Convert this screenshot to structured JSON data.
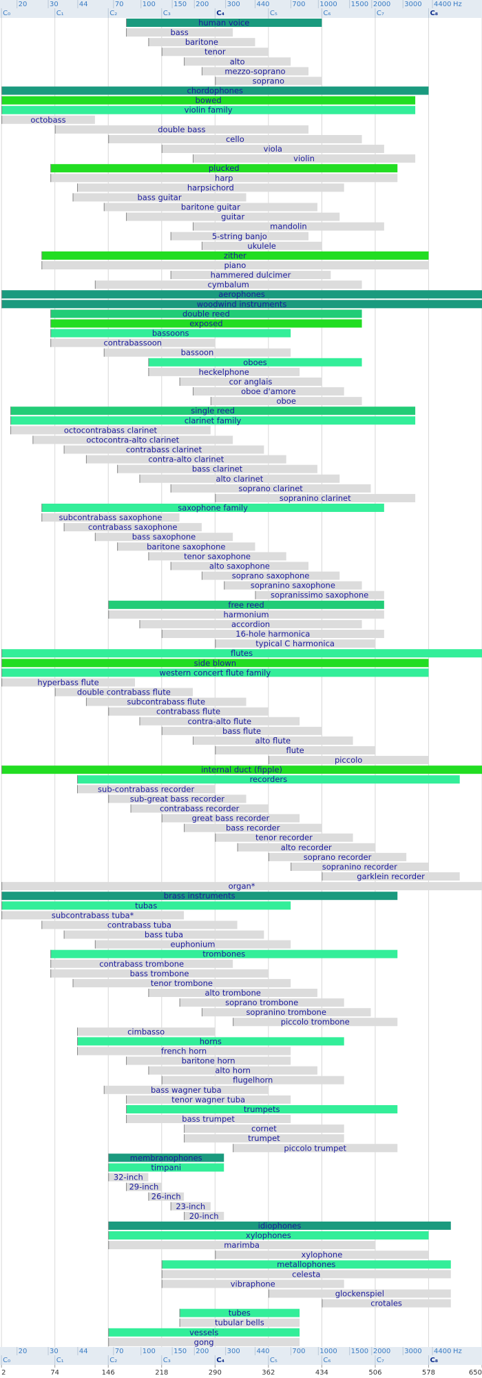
{
  "chart_data": {
    "type": "range_bar",
    "xlim": [
      0,
      650
    ],
    "xticks": [
      2,
      74,
      146,
      218,
      290,
      362,
      434,
      506,
      578,
      650
    ],
    "x2lim": [
      16.04,
      8372.02
    ],
    "x2scale": "log",
    "x2ticks": [
      20,
      30,
      44,
      70,
      100,
      150,
      200,
      300,
      440,
      700,
      1000,
      1500,
      2000,
      3000,
      4400
    ],
    "x2_unit": "Hz",
    "note_ticks": [
      {
        "value": 2,
        "label": "C₀"
      },
      {
        "value": 74,
        "label": "C₁"
      },
      {
        "value": 146,
        "label": "C₂"
      },
      {
        "value": 218,
        "label": "C₃"
      },
      {
        "value": 290,
        "label": "C₄"
      },
      {
        "value": 362,
        "label": "C₅"
      },
      {
        "value": 434,
        "label": "C₆"
      },
      {
        "value": 506,
        "label": "C₇"
      },
      {
        "value": 578,
        "label": "C₈"
      }
    ],
    "grid": true,
    "label_color": "#1a1a9c",
    "categories": [
      "human voice",
      "bass",
      "baritone",
      "tenor",
      "alto",
      "mezzo-soprano",
      "soprano",
      "chordophones",
      "bowed",
      "violin family",
      "octobass",
      "double bass",
      "cello",
      "viola",
      "violin",
      "plucked",
      "harp",
      "harpsichord",
      "bass guitar",
      "baritone guitar",
      "guitar",
      "mandolin",
      "5-string banjo",
      "ukulele",
      "zither",
      "piano",
      "hammered dulcimer",
      "cymbalum",
      "aerophones",
      "woodwind instruments",
      "double reed",
      "exposed",
      "bassoons",
      "contrabassoon",
      "bassoon",
      "oboes",
      "heckelphone",
      "cor anglais",
      "oboe d'amore",
      "oboe",
      "single reed",
      "clarinet family",
      "octocontrabass clarinet",
      "octocontra-alto clarinet",
      "contrabass clarinet",
      "contra-alto clarinet",
      "bass clarinet",
      "alto clarinet",
      "soprano clarinet",
      "sopranino clarinet",
      "saxophone family",
      "subcontrabass saxophone",
      "contrabass saxophone",
      "bass saxophone",
      "baritone saxophone",
      "tenor saxophone",
      "alto saxophone",
      "soprano saxophone",
      "sopranino saxophone",
      "sopranissimo saxophone",
      "free reed",
      "harmonium",
      "accordion",
      "16-hole harmonica",
      "typical C harmonica",
      "flutes",
      "side blown",
      "western concert flute family",
      "hyperbass flute",
      "double contrabass flute",
      "subcontrabass flute",
      "contrabass flute",
      "contra-alto flute",
      "bass flute",
      "alto flute",
      "flute",
      "piccolo",
      "internal duct (fipple)",
      "recorders",
      "sub-contrabass recorder",
      "sub-great bass recorder",
      "contrabass recorder",
      "great bass recorder",
      "bass recorder",
      "tenor recorder",
      "alto recorder",
      "soprano recorder",
      "sopranino recorder",
      "garklein recorder",
      "organ*",
      "brass instruments",
      "tubas",
      "subcontrabass tuba*",
      "contrabass tuba",
      "bass tuba",
      "euphonium",
      "trombones",
      "contrabass trombone",
      "bass trombone",
      "tenor trombone",
      "alto trombone",
      "soprano trombone",
      "sopranino trombone",
      "piccolo trombone",
      "cimbasso",
      "horns",
      "french horn",
      "baritone horn",
      "alto horn",
      "flugelhorn",
      "bass wagner tuba",
      "tenor wagner tuba",
      "trumpets",
      "bass trumpet",
      "cornet",
      "trumpet",
      "piccolo trumpet",
      "membranophones",
      "timpani",
      "32-inch",
      "29-inch",
      "26-inch",
      "23-inch",
      "20-inch",
      "idiophones",
      "xylophones",
      "marimba",
      "xylophone",
      "metallophones",
      "celesta",
      "vibraphone",
      "glockenspiel",
      "crotales",
      "tubes",
      "tubular bells",
      "vessels",
      "gong"
    ],
    "low": [
      170,
      170,
      200,
      218,
      248,
      272,
      290,
      2,
      2,
      2,
      2,
      74,
      146,
      218,
      260,
      68,
      68,
      104,
      98,
      140,
      170,
      260,
      230,
      272,
      56,
      56,
      230,
      128,
      2,
      2,
      68,
      68,
      68,
      68,
      140,
      200,
      200,
      242,
      260,
      284,
      14,
      14,
      14,
      44,
      86,
      116,
      158,
      188,
      230,
      290,
      56,
      56,
      86,
      128,
      158,
      200,
      230,
      272,
      302,
      344,
      146,
      146,
      188,
      218,
      290,
      2,
      2,
      2,
      2,
      74,
      116,
      146,
      188,
      218,
      260,
      290,
      362,
      2,
      104,
      104,
      146,
      176,
      218,
      248,
      290,
      320,
      362,
      392,
      434,
      2,
      2,
      2,
      2,
      56,
      86,
      128,
      68,
      68,
      68,
      98,
      200,
      242,
      272,
      314,
      104,
      104,
      104,
      170,
      200,
      218,
      140,
      170,
      170,
      170,
      248,
      248,
      314,
      146,
      146,
      146,
      170,
      200,
      230,
      248,
      146,
      146,
      146,
      290,
      218,
      218,
      218,
      362,
      434,
      242,
      242,
      146,
      146
    ],
    "high": [
      434,
      314,
      344,
      362,
      392,
      416,
      434,
      578,
      560,
      560,
      128,
      416,
      488,
      518,
      560,
      536,
      536,
      464,
      332,
      428,
      458,
      518,
      416,
      434,
      578,
      578,
      446,
      488,
      650,
      650,
      488,
      488,
      392,
      290,
      392,
      488,
      404,
      434,
      464,
      488,
      560,
      560,
      284,
      314,
      356,
      386,
      428,
      458,
      500,
      560,
      518,
      242,
      272,
      314,
      344,
      386,
      416,
      458,
      488,
      518,
      518,
      518,
      488,
      518,
      506,
      650,
      578,
      578,
      182,
      260,
      332,
      362,
      404,
      434,
      476,
      506,
      578,
      650,
      620,
      290,
      332,
      362,
      404,
      434,
      476,
      506,
      548,
      578,
      620,
      650,
      536,
      392,
      248,
      320,
      356,
      392,
      536,
      314,
      362,
      392,
      428,
      464,
      500,
      536,
      290,
      464,
      392,
      392,
      428,
      464,
      362,
      392,
      536,
      392,
      464,
      464,
      536,
      302,
      302,
      200,
      218,
      248,
      284,
      302,
      608,
      578,
      506,
      578,
      608,
      608,
      464,
      608,
      608,
      404,
      404,
      404,
      404
    ],
    "colors": [
      "#1a9a7e",
      "#dcdcdc",
      "#dcdcdc",
      "#dcdcdc",
      "#dcdcdc",
      "#dcdcdc",
      "#dcdcdc",
      "#1a9a7e",
      "#22dd22",
      "#33ee99",
      "#dcdcdc",
      "#dcdcdc",
      "#dcdcdc",
      "#dcdcdc",
      "#dcdcdc",
      "#22dd22",
      "#dcdcdc",
      "#dcdcdc",
      "#dcdcdc",
      "#dcdcdc",
      "#dcdcdc",
      "#dcdcdc",
      "#dcdcdc",
      "#dcdcdc",
      "#22dd22",
      "#dcdcdc",
      "#dcdcdc",
      "#dcdcdc",
      "#1a9a7e",
      "#1a9a7e",
      "#22cc77",
      "#22dd22",
      "#33ee99",
      "#dcdcdc",
      "#dcdcdc",
      "#33ee99",
      "#dcdcdc",
      "#dcdcdc",
      "#dcdcdc",
      "#dcdcdc",
      "#22cc77",
      "#33ee99",
      "#dcdcdc",
      "#dcdcdc",
      "#dcdcdc",
      "#dcdcdc",
      "#dcdcdc",
      "#dcdcdc",
      "#dcdcdc",
      "#dcdcdc",
      "#33ee99",
      "#dcdcdc",
      "#dcdcdc",
      "#dcdcdc",
      "#dcdcdc",
      "#dcdcdc",
      "#dcdcdc",
      "#dcdcdc",
      "#dcdcdc",
      "#dcdcdc",
      "#22cc77",
      "#dcdcdc",
      "#dcdcdc",
      "#dcdcdc",
      "#dcdcdc",
      "#33ee99",
      "#22dd22",
      "#33ee99",
      "#dcdcdc",
      "#dcdcdc",
      "#dcdcdc",
      "#dcdcdc",
      "#dcdcdc",
      "#dcdcdc",
      "#dcdcdc",
      "#dcdcdc",
      "#dcdcdc",
      "#22dd22",
      "#33ee99",
      "#dcdcdc",
      "#dcdcdc",
      "#dcdcdc",
      "#dcdcdc",
      "#dcdcdc",
      "#dcdcdc",
      "#dcdcdc",
      "#dcdcdc",
      "#dcdcdc",
      "#dcdcdc",
      "#dcdcdc",
      "#1a9a7e",
      "#33ee99",
      "#dcdcdc",
      "#dcdcdc",
      "#dcdcdc",
      "#dcdcdc",
      "#33ee99",
      "#dcdcdc",
      "#dcdcdc",
      "#dcdcdc",
      "#dcdcdc",
      "#dcdcdc",
      "#dcdcdc",
      "#dcdcdc",
      "#dcdcdc",
      "#33ee99",
      "#dcdcdc",
      "#dcdcdc",
      "#dcdcdc",
      "#dcdcdc",
      "#dcdcdc",
      "#dcdcdc",
      "#33ee99",
      "#dcdcdc",
      "#dcdcdc",
      "#dcdcdc",
      "#dcdcdc",
      "#1a9a7e",
      "#33ee99",
      "#dcdcdc",
      "#dcdcdc",
      "#dcdcdc",
      "#dcdcdc",
      "#dcdcdc",
      "#1a9a7e",
      "#33ee99",
      "#dcdcdc",
      "#dcdcdc",
      "#33ee99",
      "#dcdcdc",
      "#dcdcdc",
      "#dcdcdc",
      "#dcdcdc",
      "#33ee99",
      "#dcdcdc",
      "#33ee99",
      "#dcdcdc"
    ]
  }
}
